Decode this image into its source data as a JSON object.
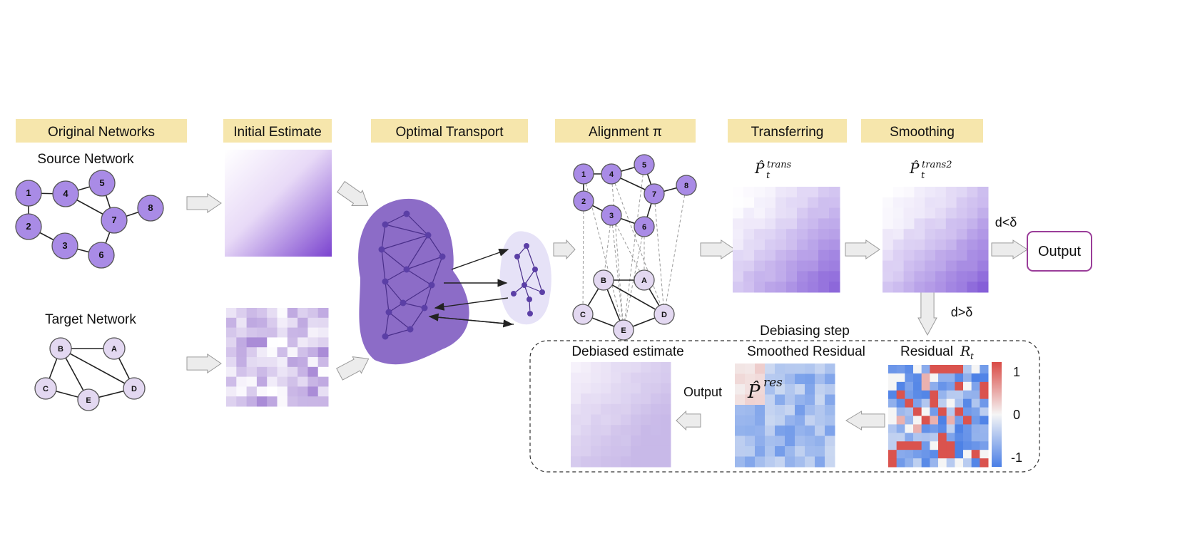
{
  "headers": [
    "Original Networks",
    "Initial Estimate",
    "Optimal Transport",
    "Alignment π",
    "Transferring",
    "Smoothing"
  ],
  "source_network": {
    "title": "Source Network",
    "nodes": [
      "1",
      "2",
      "3",
      "4",
      "5",
      "6",
      "7",
      "8"
    ]
  },
  "target_network": {
    "title": "Target Network",
    "nodes": [
      "A",
      "B",
      "C",
      "D",
      "E"
    ]
  },
  "labels": {
    "p_trans_base": "P̂",
    "p_trans_sub": "t",
    "p_trans_sup": "trans",
    "p_trans2_sup": "trans2",
    "d_less": "d<δ",
    "d_greater": "d>δ",
    "output": "Output",
    "output_small": "Output",
    "debiasing_step": "Debiasing step",
    "debiased_estimate": "Debiased estimate",
    "smoothed_residual": "Smoothed Residual",
    "p_res_base": "P̂",
    "p_res_sup": "res",
    "residual": "Residual ",
    "residual_var": "R",
    "residual_sub": "t"
  },
  "colorbar": {
    "ticks": [
      "1",
      "0",
      "-1"
    ],
    "high": "#d94a45",
    "mid": "#f5f5f5",
    "low": "#4a7fe6"
  },
  "colors": {
    "header_bg": "#f6e6ac",
    "node_source": "#a98be6",
    "node_target": "#e3d8f1",
    "blob_dark": "#8c6cc7",
    "blob_light": "#e6e2f7",
    "output_border": "#9a3d99"
  }
}
